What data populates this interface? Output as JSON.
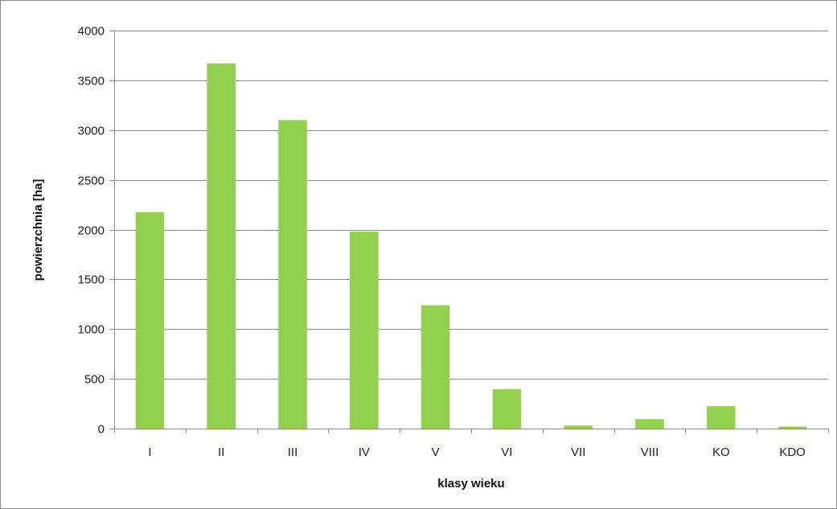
{
  "chart_data": {
    "type": "bar",
    "title": "",
    "xlabel": "klasy wieku",
    "ylabel": "powierzchnia [ha]",
    "categories": [
      "I",
      "II",
      "III",
      "IV",
      "V",
      "VI",
      "VII",
      "VIII",
      "KO",
      "KDO"
    ],
    "values": [
      2175,
      3670,
      3100,
      1980,
      1240,
      395,
      30,
      95,
      225,
      20
    ],
    "ylim": [
      0,
      4000
    ],
    "yticks": [
      0,
      500,
      1000,
      1500,
      2000,
      2500,
      3000,
      3500,
      4000
    ],
    "grid": true,
    "legend": "none",
    "colors": {
      "bar": "#92d050",
      "grid": "#8c8c8c",
      "axis": "#8c8c8c"
    }
  }
}
